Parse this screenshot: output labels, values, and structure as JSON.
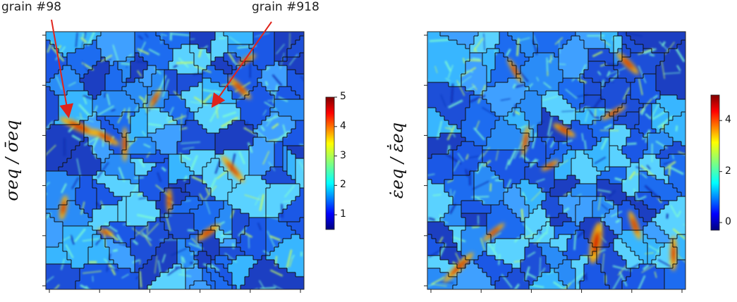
{
  "annotations": {
    "left_grain_a": "grain #98",
    "left_grain_b": "grain #918"
  },
  "panels": [
    {
      "id": "stress",
      "ylabel": "σeq / σ̄eq",
      "colorbar": {
        "min": 0.5,
        "max": 5,
        "ticks": [
          "1",
          "2",
          "3",
          "4",
          "5"
        ]
      },
      "colormap": "jet"
    },
    {
      "id": "strain-rate",
      "ylabel": "ε̇eq / ε̄̇eq",
      "colorbar": {
        "min": -0.3,
        "max": 5,
        "ticks": [
          "0",
          "2",
          "4"
        ]
      },
      "colormap": "jet"
    }
  ],
  "colors": {
    "arrow": "#e0241b",
    "grain_boundary": "#111111"
  }
}
